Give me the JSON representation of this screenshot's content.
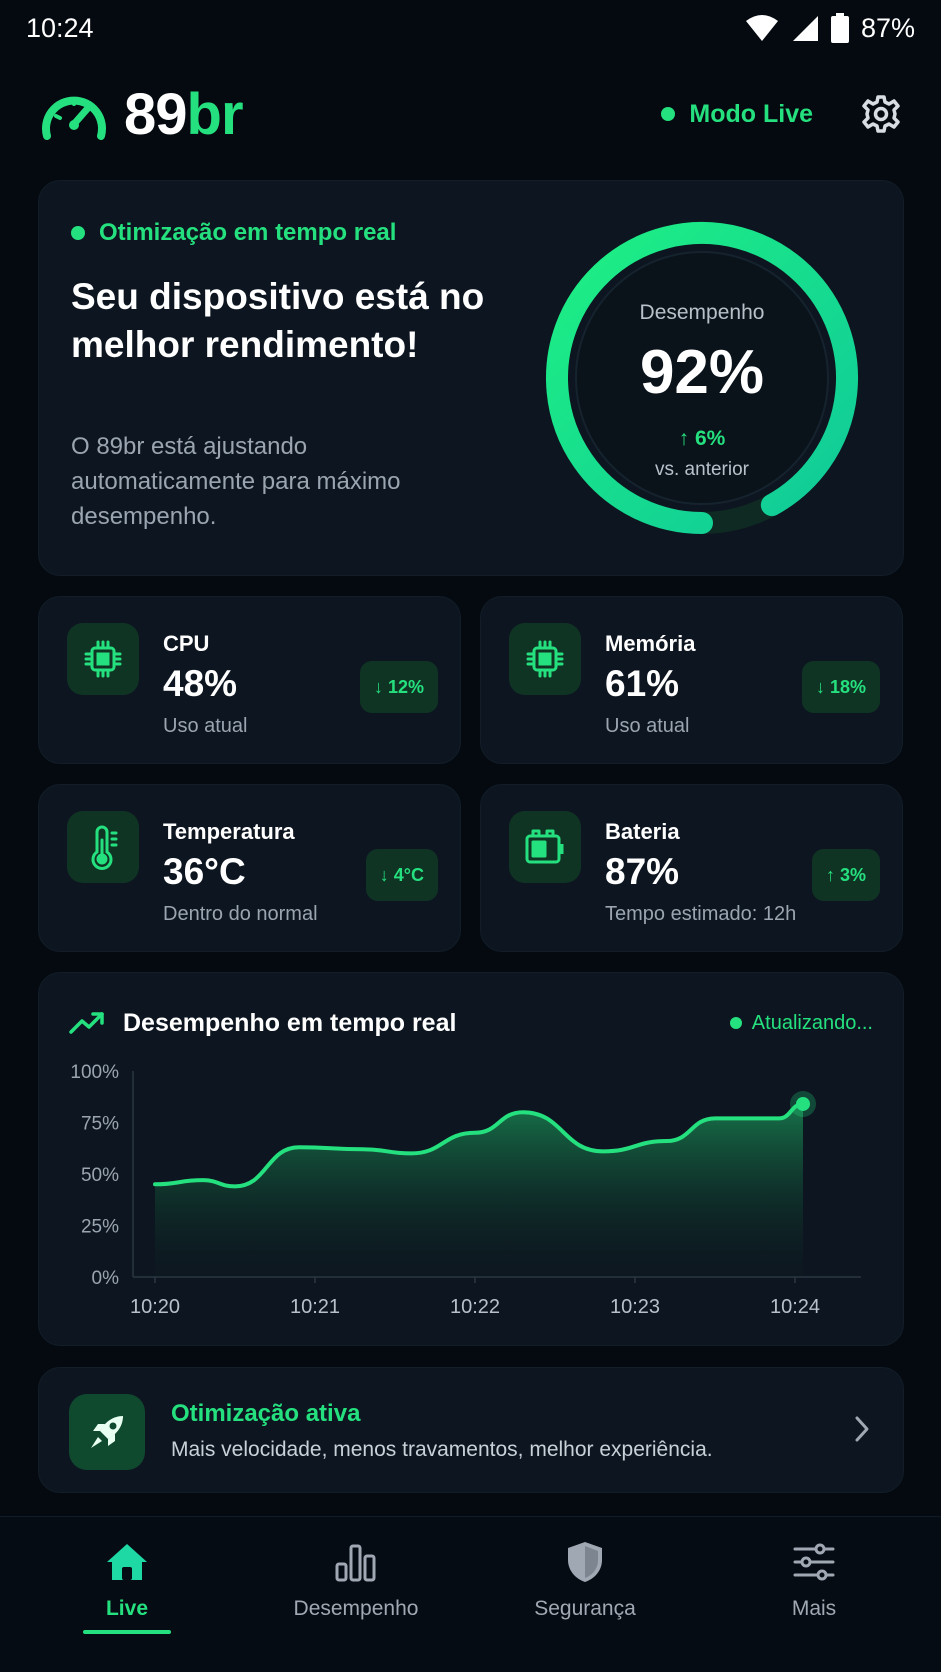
{
  "status_bar": {
    "time": "10:24",
    "battery": "87%"
  },
  "header": {
    "brand_main": "89",
    "brand_accent": "br",
    "live_mode": "Modo Live"
  },
  "hero": {
    "tag": "Otimização em tempo real",
    "title": "Seu dispositivo está no melhor rendimento!",
    "description": "O 89br está ajustando automaticamente para máximo desempenho.",
    "gauge": {
      "label": "Desempenho",
      "value": "92%",
      "fraction": 0.92,
      "delta": "↑ 6%",
      "delta_label": "vs. anterior"
    }
  },
  "stats": [
    {
      "title": "CPU",
      "value": "48%",
      "sub": "Uso atual",
      "badge": "↓ 12%",
      "icon": "cpu-chip-icon"
    },
    {
      "title": "Memória",
      "value": "61%",
      "sub": "Uso atual",
      "badge": "↓ 18%",
      "icon": "memory-chip-icon"
    },
    {
      "title": "Temperatura",
      "value": "36°C",
      "sub": "Dentro do normal",
      "badge": "↓ 4°C",
      "icon": "thermometer-icon"
    },
    {
      "title": "Bateria",
      "value": "87%",
      "sub": "Tempo estimado: 12h",
      "badge": "↑ 3%",
      "icon": "battery-icon"
    }
  ],
  "chart": {
    "title": "Desempenho em tempo real",
    "status": "Atualizando..."
  },
  "chart_data": {
    "type": "area",
    "title": "Desempenho em tempo real",
    "x_ticks": [
      "10:20",
      "10:21",
      "10:22",
      "10:23",
      "10:24"
    ],
    "y_ticks": [
      "100%",
      "75%",
      "50%",
      "25%",
      "0%"
    ],
    "ylim": [
      0,
      100
    ],
    "grid": false,
    "series": [
      {
        "x": [
          0,
          0.3,
          0.5,
          0.9,
          1.3,
          1.6,
          2.0,
          2.3,
          2.8,
          3.2,
          3.5,
          3.9,
          4.05
        ],
        "values": [
          45,
          47,
          44,
          63,
          62,
          60,
          70,
          80,
          61,
          66,
          77,
          77,
          84
        ]
      }
    ],
    "color": "#25e07e"
  },
  "optimization": {
    "title": "Otimização ativa",
    "description": "Mais velocidade, menos travamentos, melhor experiência."
  },
  "nav": [
    {
      "label": "Live",
      "icon": "home-icon",
      "active": true
    },
    {
      "label": "Desempenho",
      "icon": "bar-chart-icon",
      "active": false
    },
    {
      "label": "Segurança",
      "icon": "shield-icon",
      "active": false
    },
    {
      "label": "Mais",
      "icon": "sliders-icon",
      "active": false
    }
  ]
}
